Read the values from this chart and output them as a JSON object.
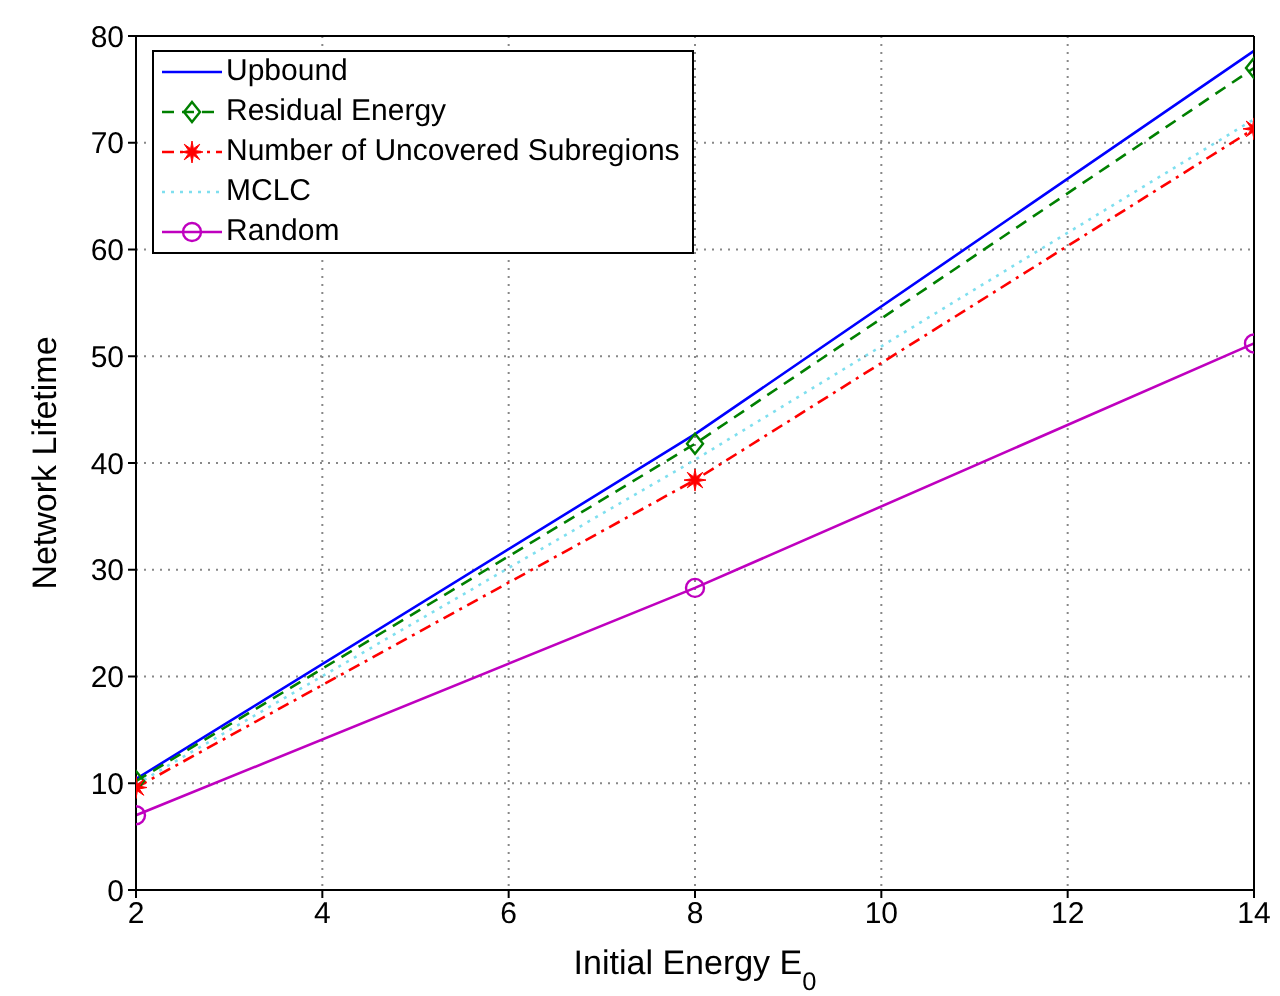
{
  "chart_data": {
    "type": "line",
    "xlabel": "Initial Energy  E$_{0}$",
    "ylabel": "Network Lifetime",
    "x": [
      2,
      8,
      14
    ],
    "series": [
      {
        "name": "Upbound",
        "color": "#0000ff",
        "values": [
          10.4,
          42.7,
          78.6
        ],
        "marker": "none",
        "line_style": "solid"
      },
      {
        "name": "Residual Energy",
        "color": "#008000",
        "values": [
          10.2,
          41.8,
          77.0
        ],
        "marker": "diamond",
        "line_style": "dashed"
      },
      {
        "name": "Number of Uncovered Subregions",
        "color": "#ff0000",
        "values": [
          9.6,
          38.4,
          71.3
        ],
        "marker": "star",
        "line_style": "dashdot"
      },
      {
        "name": "MCLC",
        "color": "#7fdfef",
        "values": [
          9.9,
          40.3,
          72.2
        ],
        "marker": "none",
        "line_style": "dotted"
      },
      {
        "name": "Random",
        "color": "#bf00bf",
        "values": [
          7.0,
          28.3,
          51.2
        ],
        "marker": "circle",
        "line_style": "solid"
      }
    ],
    "xlim": [
      2,
      14
    ],
    "xticks": [
      2,
      4,
      6,
      8,
      10,
      12,
      14
    ],
    "ylim": [
      0,
      80
    ],
    "yticks": [
      0,
      10,
      20,
      30,
      40,
      50,
      60,
      70,
      80
    ],
    "grid": true,
    "legend": "top left"
  }
}
